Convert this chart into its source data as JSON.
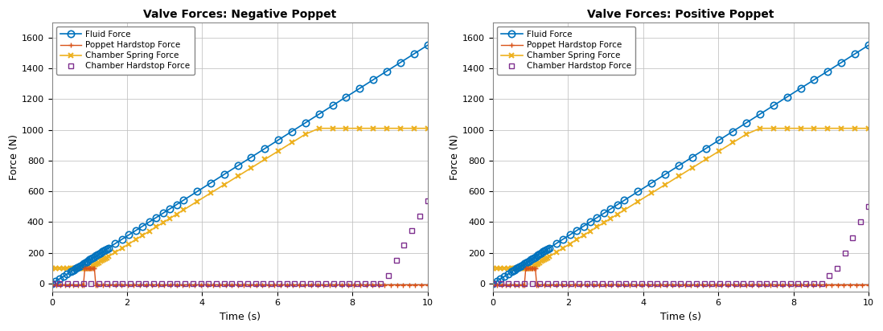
{
  "title_left": "Valve Forces: Negative Poppet",
  "title_right": "Valve Forces: Positive Poppet",
  "xlabel": "Time (s)",
  "ylabel": "Force (N)",
  "xlim": [
    0,
    10
  ],
  "ylim": [
    -50,
    1700
  ],
  "yticks": [
    0,
    200,
    400,
    600,
    800,
    1000,
    1200,
    1400,
    1600
  ],
  "xticks": [
    0,
    2,
    4,
    6,
    8,
    10
  ],
  "legend_labels": [
    "Fluid Force",
    "Poppet Hardstop Force",
    "Chamber Spring Force",
    "Chamber Hardstop Force"
  ],
  "fluid_color": "#0072BD",
  "poppet_hs_color": "#D95319",
  "chamber_spring_color": "#EDB120",
  "chamber_hs_color": "#7E2F8E",
  "bg_color": "#FFFFFF",
  "grid_color": "#C0C0C0",
  "fluid_slope": 155.0,
  "spring_flat_val": 100.0,
  "spring_ramp_start": 1.0,
  "spring_ramp_end": 7.0,
  "spring_plateau": 1010.0,
  "poppet_hs_val": -8.0,
  "poppet_hs_spike": 100.0,
  "poppet_spike_t": 1.0,
  "chs_neg_values": [
    0,
    0,
    0,
    0,
    0,
    0,
    0,
    0,
    0,
    0,
    0,
    0,
    0,
    0,
    0,
    0,
    0,
    0,
    0,
    0,
    0,
    0,
    0,
    0,
    0,
    0,
    0,
    0,
    0,
    0,
    0,
    0,
    0,
    0,
    0,
    0,
    0,
    0,
    0,
    0,
    0,
    0,
    0,
    50,
    150,
    250,
    345,
    440,
    540
  ],
  "chs_pos_values": [
    0,
    0,
    0,
    0,
    0,
    0,
    0,
    0,
    0,
    0,
    0,
    0,
    0,
    0,
    0,
    0,
    0,
    0,
    0,
    0,
    0,
    0,
    0,
    0,
    0,
    0,
    0,
    0,
    0,
    0,
    0,
    0,
    0,
    0,
    0,
    0,
    0,
    0,
    0,
    0,
    0,
    0,
    0,
    50,
    100,
    200,
    300,
    400,
    500
  ]
}
